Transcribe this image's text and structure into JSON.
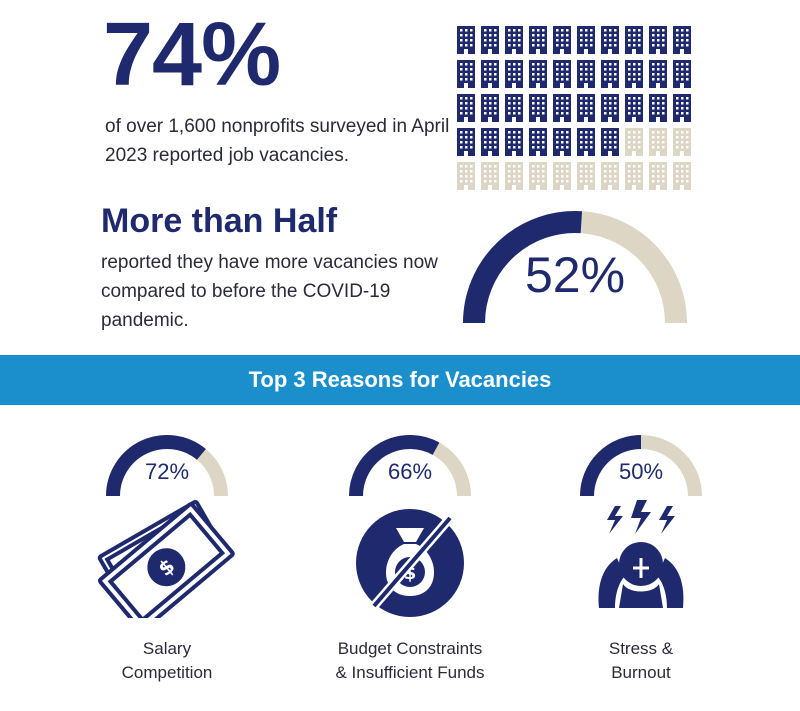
{
  "colors": {
    "navy": "#1f2a6e",
    "beige": "#ddd6c4",
    "banner": "#1a8fcc"
  },
  "headline": {
    "stat": "74%",
    "description": "of over 1,600 nonprofits surveyed in April 2023 reported job vacancies.",
    "filled_fraction": 0.74,
    "grid_icon": "office-building-icon"
  },
  "half": {
    "title": "More than Half",
    "description": "reported they have more vacancies now compared to before the COVID-19 pandemic.",
    "stat": "52%",
    "fraction": 0.52
  },
  "banner": {
    "title": "Top 3 Reasons for Vacancies"
  },
  "reasons": [
    {
      "pct": "72%",
      "fraction": 0.72,
      "label_line1": "Salary",
      "label_line2": "Competition",
      "icon": "money-bills-icon"
    },
    {
      "pct": "66%",
      "fraction": 0.66,
      "label_line1": "Budget Constraints",
      "label_line2": "& Insufficient Funds",
      "icon": "no-money-bag-icon"
    },
    {
      "pct": "50%",
      "fraction": 0.5,
      "label_line1": "Stress &",
      "label_line2": "Burnout",
      "icon": "stressed-person-icon"
    }
  ]
}
